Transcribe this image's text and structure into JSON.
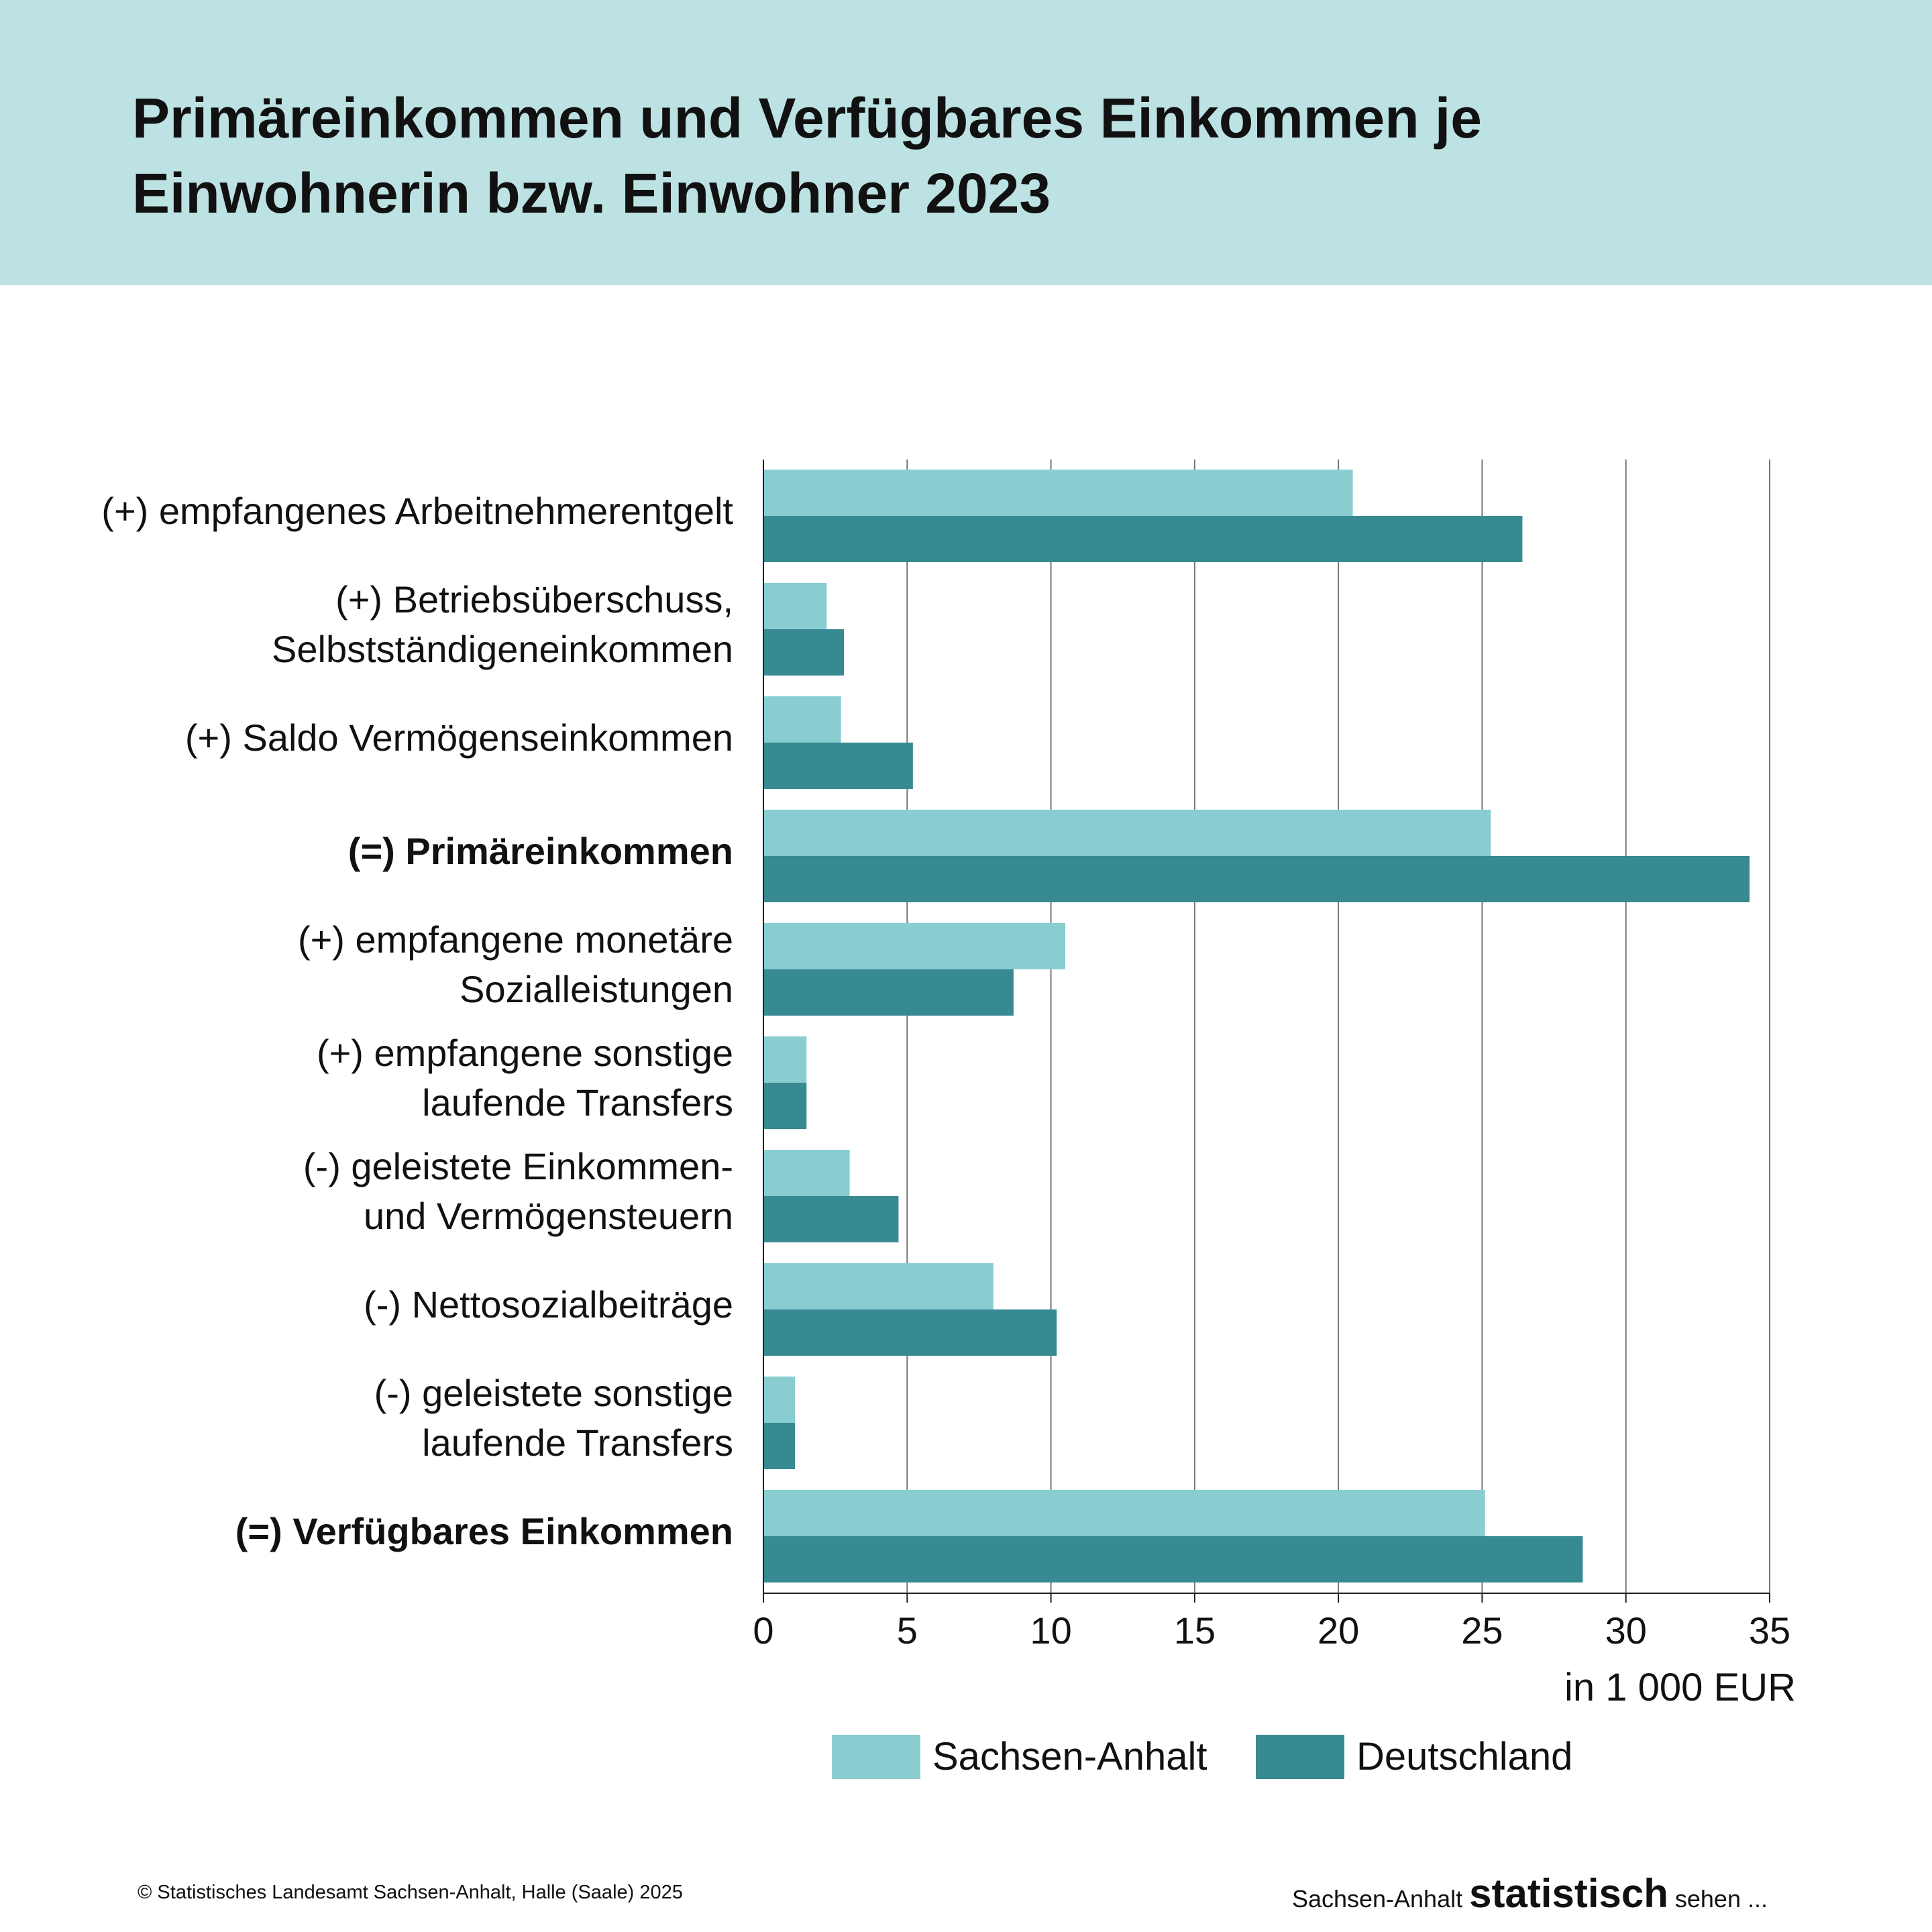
{
  "title": "Primäreinkommen und Verfügbares Einkommen je Einwohnerin bzw. Einwohner 2023",
  "colors": {
    "header_bg": "#bde2e3",
    "sachsen_anhalt": "#89cdd1",
    "deutschland": "#378a92",
    "grid": "#777777"
  },
  "chart_data": {
    "type": "bar",
    "orientation": "horizontal",
    "title": "Primäreinkommen und Verfügbares Einkommen je Einwohnerin bzw. Einwohner 2023",
    "categories": [
      "(+) empfangenes Arbeitnehmerentgelt",
      "(+) Betriebsüberschuss,\nSelbstständigeneinkommen",
      "(+) Saldo Vermögenseinkommen",
      "(=) Primäreinkommen",
      "(+) empfangene monetäre\nSozialleistungen",
      "(+) empfangene sonstige\nlaufende Transfers",
      "(-) geleistete Einkommen-\nund Vermögensteuern",
      "(-) Nettosozialbeiträge",
      "(-) geleistete sonstige\nlaufende Transfers",
      "(=) Verfügbares Einkommen"
    ],
    "bold_categories": [
      3,
      9
    ],
    "series": [
      {
        "name": "Sachsen-Anhalt",
        "color": "#89cdd1",
        "values": [
          20.5,
          2.2,
          2.7,
          25.3,
          10.5,
          1.5,
          3.0,
          8.0,
          1.1,
          25.1
        ]
      },
      {
        "name": "Deutschland",
        "color": "#378a92",
        "values": [
          26.4,
          2.8,
          5.2,
          34.3,
          8.7,
          1.5,
          4.7,
          10.2,
          1.1,
          28.5
        ]
      }
    ],
    "xlim": [
      0,
      35
    ],
    "xticks": [
      0,
      5,
      10,
      15,
      20,
      25,
      30,
      35
    ],
    "xlabel": "in 1 000 EUR",
    "grid": "vertical",
    "legend": "bottom"
  },
  "footer": {
    "copyright": "© Statistisches Landesamt Sachsen-Anhalt, Halle (Saale) 2025",
    "brand_prefix": "Sachsen-Anhalt ",
    "brand_bold": "statistisch",
    "brand_suffix": " sehen ..."
  }
}
